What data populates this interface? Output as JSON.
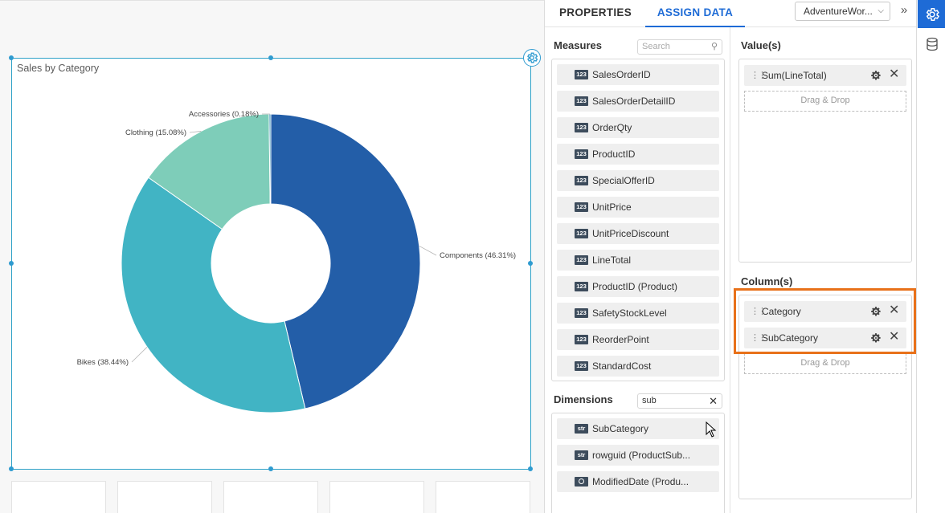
{
  "widget": {
    "title": "Sales by Category",
    "settings_icon": "gear-icon"
  },
  "chart_data": {
    "type": "pie",
    "title": "Sales by Category",
    "donut": true,
    "categories": [
      "Components",
      "Bikes",
      "Clothing",
      "Accessories"
    ],
    "values": [
      46.31,
      38.44,
      15.08,
      0.18
    ],
    "labels": [
      "Components (46.31%)",
      "Bikes (38.44%)",
      "Clothing (15.08%)",
      "Accessories (0.18%)"
    ],
    "colors": [
      "#235ea8",
      "#41b4c4",
      "#7ecdb9",
      "#3b8fb8"
    ]
  },
  "panel": {
    "tabs": [
      {
        "label": "PROPERTIES",
        "active": false
      },
      {
        "label": "ASSIGN DATA",
        "active": true
      }
    ],
    "datasource": "AdventureWor...",
    "measures": {
      "label": "Measures",
      "search_placeholder": "Search",
      "items": [
        {
          "type": "123",
          "name": "SalesOrderID"
        },
        {
          "type": "123",
          "name": "SalesOrderDetailID"
        },
        {
          "type": "123",
          "name": "OrderQty"
        },
        {
          "type": "123",
          "name": "ProductID"
        },
        {
          "type": "123",
          "name": "SpecialOfferID"
        },
        {
          "type": "123",
          "name": "UnitPrice"
        },
        {
          "type": "123",
          "name": "UnitPriceDiscount"
        },
        {
          "type": "123",
          "name": "LineTotal"
        },
        {
          "type": "123",
          "name": "ProductID (Product)"
        },
        {
          "type": "123",
          "name": "SafetyStockLevel"
        },
        {
          "type": "123",
          "name": "ReorderPoint"
        },
        {
          "type": "123",
          "name": "StandardCost"
        }
      ]
    },
    "dimensions": {
      "label": "Dimensions",
      "search_value": "sub",
      "items": [
        {
          "type": "str",
          "name": "SubCategory"
        },
        {
          "type": "str",
          "name": "rowguid (ProductSub..."
        },
        {
          "type": "date",
          "name": "ModifiedDate (Produ..."
        }
      ]
    },
    "values_section": {
      "label": "Value(s)",
      "items": [
        {
          "name": "Sum(LineTotal)"
        }
      ],
      "drop_text": "Drag & Drop"
    },
    "columns_section": {
      "label": "Column(s)",
      "items": [
        {
          "name": "Category"
        },
        {
          "name": "SubCategory"
        }
      ],
      "drop_text": "Drag & Drop"
    }
  },
  "rail": {
    "items": [
      {
        "icon": "gear-icon",
        "active": true
      },
      {
        "icon": "database-icon",
        "active": false
      }
    ]
  }
}
